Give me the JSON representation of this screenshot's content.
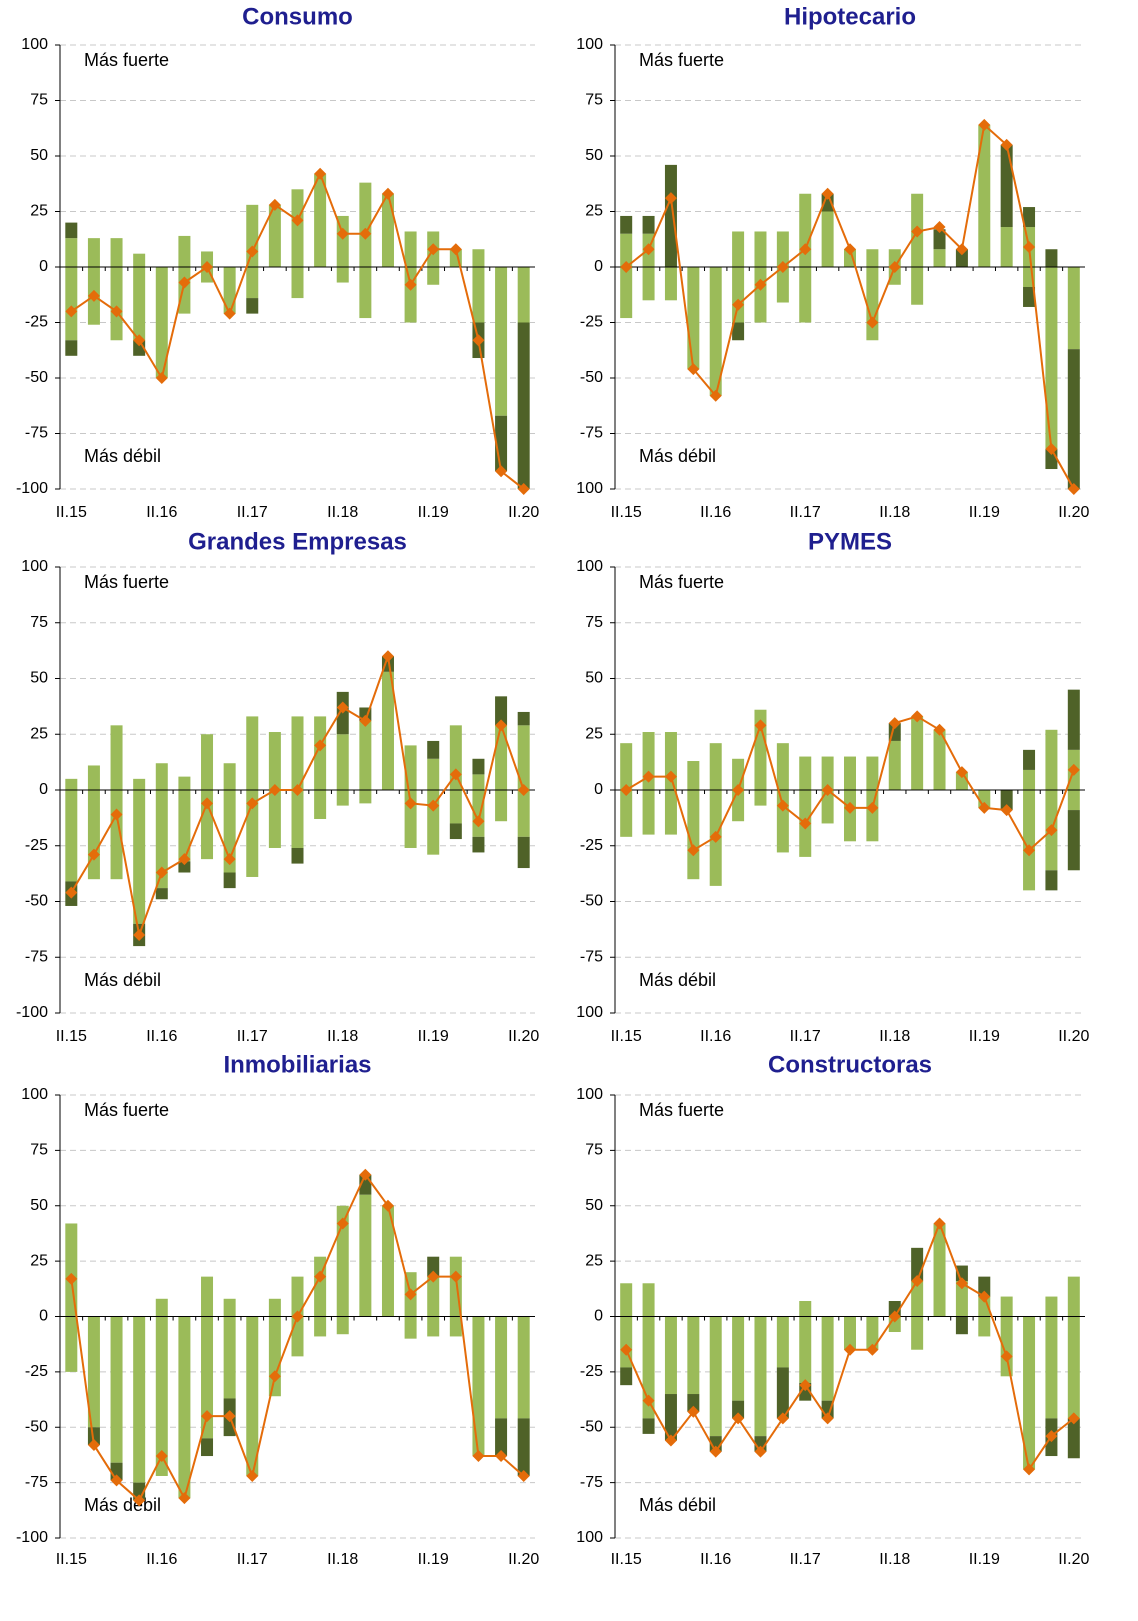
{
  "chart_data": [
    {
      "type": "bar",
      "title": "Consumo",
      "annotations": [
        "Más fuerte",
        "Más débil"
      ],
      "categories": [
        "II.15",
        null,
        null,
        null,
        "II.16",
        null,
        null,
        null,
        "II.17",
        null,
        null,
        null,
        "II.18",
        null,
        null,
        null,
        "II.19",
        null,
        null,
        null,
        "II.20"
      ],
      "ylim": [
        -100,
        100
      ],
      "yticks": [
        100,
        75,
        50,
        25,
        0,
        -25,
        -50,
        -75,
        -100
      ],
      "grid": true,
      "series": [
        {
          "type": "bar",
          "color": "#9bbb59",
          "values": [
            13,
            13,
            13,
            6,
            0,
            14,
            7,
            0,
            28,
            28,
            35,
            42,
            23,
            38,
            33,
            16,
            16,
            8,
            8,
            0,
            0
          ]
        },
        {
          "type": "bar",
          "color": "#4f6228",
          "values": [
            7,
            0,
            0,
            0,
            0,
            0,
            0,
            0,
            0,
            0,
            0,
            0,
            0,
            0,
            0,
            0,
            0,
            0,
            0,
            0,
            0
          ]
        },
        {
          "type": "bar",
          "color": "#9bbb59",
          "values": [
            -33,
            -26,
            -33,
            -33,
            -50,
            -21,
            -7,
            -21,
            -14,
            0,
            -14,
            0,
            -7,
            -23,
            0,
            -25,
            -8,
            0,
            -25,
            -67,
            -25
          ]
        },
        {
          "type": "bar",
          "color": "#4f6228",
          "values": [
            -7,
            0,
            0,
            -7,
            0,
            0,
            0,
            0,
            -7,
            0,
            0,
            0,
            0,
            0,
            0,
            0,
            0,
            0,
            -16,
            -25,
            -75
          ]
        },
        {
          "type": "line",
          "color": "#e46c0a",
          "values": [
            -20,
            -13,
            -20,
            -33,
            -50,
            -7,
            0,
            -21,
            7,
            28,
            21,
            42,
            15,
            15,
            33,
            -8,
            8,
            8,
            -33,
            -92,
            -100
          ]
        }
      ]
    },
    {
      "type": "bar",
      "title": "Hipotecario",
      "annotations": [
        "Más fuerte",
        "Más débil"
      ],
      "categories": [
        "II.15",
        null,
        null,
        null,
        "II.16",
        null,
        null,
        null,
        "II.17",
        null,
        null,
        null,
        "II.18",
        null,
        null,
        null,
        "II.19",
        null,
        null,
        null,
        "II.20"
      ],
      "ylim": [
        -100,
        100
      ],
      "yticks": [
        100,
        75,
        50,
        25,
        0,
        -25,
        -50,
        -75,
        {
          "value": -100,
          "label": "100"
        }
      ],
      "grid": true,
      "series": [
        {
          "type": "bar",
          "color": "#9bbb59",
          "values": [
            15,
            15,
            0,
            0,
            0,
            16,
            16,
            16,
            33,
            25,
            8,
            8,
            8,
            33,
            8,
            0,
            64,
            18,
            18,
            0,
            0
          ]
        },
        {
          "type": "bar",
          "color": "#4f6228",
          "values": [
            8,
            8,
            46,
            0,
            0,
            0,
            0,
            0,
            0,
            8,
            0,
            0,
            0,
            0,
            9,
            8,
            0,
            37,
            9,
            8,
            0
          ]
        },
        {
          "type": "bar",
          "color": "#9bbb59",
          "values": [
            -23,
            -15,
            -15,
            -46,
            -58,
            -25,
            -25,
            -16,
            -25,
            0,
            0,
            -33,
            -8,
            -17,
            0,
            0,
            0,
            0,
            -9,
            -82,
            -37
          ]
        },
        {
          "type": "bar",
          "color": "#4f6228",
          "values": [
            0,
            0,
            0,
            0,
            0,
            -8,
            0,
            0,
            0,
            0,
            0,
            0,
            0,
            0,
            0,
            0,
            0,
            0,
            -9,
            -9,
            -63
          ]
        },
        {
          "type": "line",
          "color": "#e46c0a",
          "values": [
            0,
            8,
            31,
            -46,
            -58,
            -17,
            -8,
            0,
            8,
            33,
            8,
            -25,
            0,
            16,
            18,
            8,
            64,
            55,
            9,
            -82,
            -100
          ]
        }
      ]
    },
    {
      "type": "bar",
      "title": "Grandes Empresas",
      "annotations": [
        "Más fuerte",
        "Más débil"
      ],
      "categories": [
        "II.15",
        null,
        null,
        null,
        "II.16",
        null,
        null,
        null,
        "II.17",
        null,
        null,
        null,
        "II.18",
        null,
        null,
        null,
        "II.19",
        null,
        null,
        null,
        "II.20"
      ],
      "ylim": [
        -100,
        100
      ],
      "yticks": [
        100,
        75,
        50,
        25,
        0,
        -25,
        -50,
        -75,
        -100
      ],
      "grid": true,
      "series": [
        {
          "type": "bar",
          "color": "#9bbb59",
          "values": [
            5,
            11,
            29,
            5,
            12,
            6,
            25,
            12,
            33,
            26,
            33,
            33,
            25,
            31,
            53,
            20,
            14,
            29,
            7,
            29,
            29
          ]
        },
        {
          "type": "bar",
          "color": "#4f6228",
          "values": [
            0,
            0,
            0,
            0,
            0,
            0,
            0,
            0,
            0,
            0,
            0,
            0,
            19,
            6,
            7,
            0,
            8,
            0,
            7,
            13,
            6
          ]
        },
        {
          "type": "bar",
          "color": "#9bbb59",
          "values": [
            -41,
            -40,
            -40,
            -60,
            -44,
            -32,
            -31,
            -37,
            -39,
            -26,
            -26,
            -13,
            -7,
            -6,
            0,
            -26,
            -29,
            -15,
            -21,
            -14,
            -21
          ]
        },
        {
          "type": "bar",
          "color": "#4f6228",
          "values": [
            -11,
            0,
            0,
            -10,
            -5,
            -5,
            0,
            -7,
            0,
            0,
            -7,
            0,
            0,
            0,
            0,
            0,
            0,
            -7,
            -7,
            0,
            -14
          ]
        },
        {
          "type": "line",
          "color": "#e46c0a",
          "values": [
            -46,
            -29,
            -11,
            -65,
            -37,
            -31,
            -6,
            -31,
            -6,
            0,
            0,
            20,
            37,
            31,
            60,
            -6,
            -7,
            7,
            -14,
            29,
            0
          ]
        }
      ]
    },
    {
      "type": "bar",
      "title": "PYMES",
      "annotations": [
        "Más fuerte",
        "Más débil"
      ],
      "categories": [
        "II.15",
        null,
        null,
        null,
        "II.16",
        null,
        null,
        null,
        "II.17",
        null,
        null,
        null,
        "II.18",
        null,
        null,
        null,
        "II.19",
        null,
        null,
        null,
        "II.20"
      ],
      "ylim": [
        -100,
        100
      ],
      "yticks": [
        100,
        75,
        50,
        25,
        0,
        -25,
        -50,
        -75,
        {
          "value": -100,
          "label": "100"
        }
      ],
      "grid": true,
      "series": [
        {
          "type": "bar",
          "color": "#9bbb59",
          "values": [
            21,
            26,
            26,
            13,
            21,
            14,
            36,
            21,
            15,
            15,
            15,
            15,
            22,
            33,
            27,
            8,
            0,
            0,
            9,
            27,
            18
          ]
        },
        {
          "type": "bar",
          "color": "#4f6228",
          "values": [
            0,
            0,
            0,
            0,
            0,
            0,
            0,
            0,
            0,
            0,
            0,
            0,
            8,
            0,
            0,
            0,
            0,
            0,
            9,
            0,
            27
          ]
        },
        {
          "type": "bar",
          "color": "#9bbb59",
          "values": [
            -21,
            -20,
            -20,
            -40,
            -43,
            -14,
            -7,
            -28,
            -30,
            -15,
            -23,
            -23,
            0,
            0,
            0,
            0,
            -8,
            0,
            -45,
            -36,
            -9
          ]
        },
        {
          "type": "bar",
          "color": "#4f6228",
          "values": [
            0,
            0,
            0,
            0,
            0,
            0,
            0,
            0,
            0,
            0,
            0,
            0,
            0,
            0,
            0,
            0,
            0,
            -9,
            0,
            -9,
            -27
          ]
        },
        {
          "type": "line",
          "color": "#e46c0a",
          "values": [
            0,
            6,
            6,
            -27,
            -21,
            0,
            29,
            -7,
            -15,
            0,
            -8,
            -8,
            30,
            33,
            27,
            8,
            -8,
            -9,
            -27,
            -18,
            9
          ]
        }
      ]
    },
    {
      "type": "bar",
      "title": "Inmobiliarias",
      "annotations": [
        "Más fuerte",
        "Más débil"
      ],
      "categories": [
        "II.15",
        null,
        null,
        null,
        "II.16",
        null,
        null,
        null,
        "II.17",
        null,
        null,
        null,
        "II.18",
        null,
        null,
        null,
        "II.19",
        null,
        null,
        null,
        "II.20"
      ],
      "ylim": [
        -100,
        100
      ],
      "yticks": [
        100,
        75,
        50,
        25,
        0,
        -25,
        -50,
        -75,
        -100
      ],
      "grid": true,
      "series": [
        {
          "type": "bar",
          "color": "#9bbb59",
          "values": [
            42,
            0,
            0,
            0,
            8,
            0,
            18,
            8,
            0,
            8,
            18,
            27,
            50,
            55,
            50,
            20,
            18,
            27,
            0,
            0,
            0
          ]
        },
        {
          "type": "bar",
          "color": "#4f6228",
          "values": [
            0,
            0,
            0,
            0,
            0,
            0,
            0,
            0,
            0,
            0,
            0,
            0,
            0,
            9,
            0,
            0,
            9,
            0,
            0,
            0,
            0
          ]
        },
        {
          "type": "bar",
          "color": "#9bbb59",
          "values": [
            -25,
            -50,
            -66,
            -75,
            -72,
            -82,
            -55,
            -37,
            -72,
            -36,
            -18,
            -9,
            -8,
            0,
            0,
            -10,
            -9,
            -9,
            -63,
            -46,
            -46
          ]
        },
        {
          "type": "bar",
          "color": "#4f6228",
          "values": [
            0,
            -8,
            -8,
            -8,
            0,
            0,
            -8,
            -17,
            0,
            0,
            0,
            0,
            0,
            0,
            0,
            0,
            0,
            0,
            0,
            -17,
            -26
          ]
        },
        {
          "type": "line",
          "color": "#e46c0a",
          "values": [
            17,
            -58,
            -74,
            -83,
            -63,
            -82,
            -45,
            -45,
            -72,
            -27,
            0,
            18,
            42,
            64,
            50,
            10,
            18,
            18,
            -63,
            -63,
            -72
          ]
        }
      ]
    },
    {
      "type": "bar",
      "title": "Constructoras",
      "annotations": [
        "Más fuerte",
        "Más débil"
      ],
      "categories": [
        "II.15",
        null,
        null,
        null,
        "II.16",
        null,
        null,
        null,
        "II.17",
        null,
        null,
        null,
        "II.18",
        null,
        null,
        null,
        "II.19",
        null,
        null,
        null,
        "II.20"
      ],
      "ylim": [
        -100,
        100
      ],
      "yticks": [
        100,
        75,
        50,
        25,
        0,
        -25,
        -50,
        -75,
        {
          "value": -100,
          "label": "100"
        }
      ],
      "grid": true,
      "series": [
        {
          "type": "bar",
          "color": "#9bbb59",
          "values": [
            15,
            15,
            0,
            0,
            0,
            0,
            0,
            0,
            7,
            0,
            0,
            0,
            0,
            16,
            42,
            16,
            9,
            9,
            0,
            9,
            18
          ]
        },
        {
          "type": "bar",
          "color": "#4f6228",
          "values": [
            0,
            0,
            0,
            0,
            0,
            0,
            0,
            0,
            0,
            0,
            0,
            0,
            7,
            15,
            0,
            7,
            9,
            0,
            0,
            0,
            0
          ]
        },
        {
          "type": "bar",
          "color": "#9bbb59",
          "values": [
            -23,
            -46,
            -35,
            -35,
            -54,
            -38,
            -54,
            -23,
            -30,
            -38,
            -15,
            -15,
            -7,
            -15,
            0,
            0,
            -9,
            -27,
            -69,
            -46,
            -46
          ]
        },
        {
          "type": "bar",
          "color": "#4f6228",
          "values": [
            -8,
            -7,
            -21,
            -8,
            -7,
            -8,
            -7,
            -23,
            -8,
            -8,
            0,
            0,
            0,
            0,
            0,
            -8,
            0,
            0,
            0,
            -17,
            -18
          ]
        },
        {
          "type": "line",
          "color": "#e46c0a",
          "values": [
            -15,
            -38,
            -56,
            -43,
            -61,
            -46,
            -61,
            -46,
            -31,
            -46,
            -15,
            -15,
            0,
            16,
            42,
            15,
            9,
            -18,
            -69,
            -54,
            -46
          ]
        }
      ]
    }
  ]
}
